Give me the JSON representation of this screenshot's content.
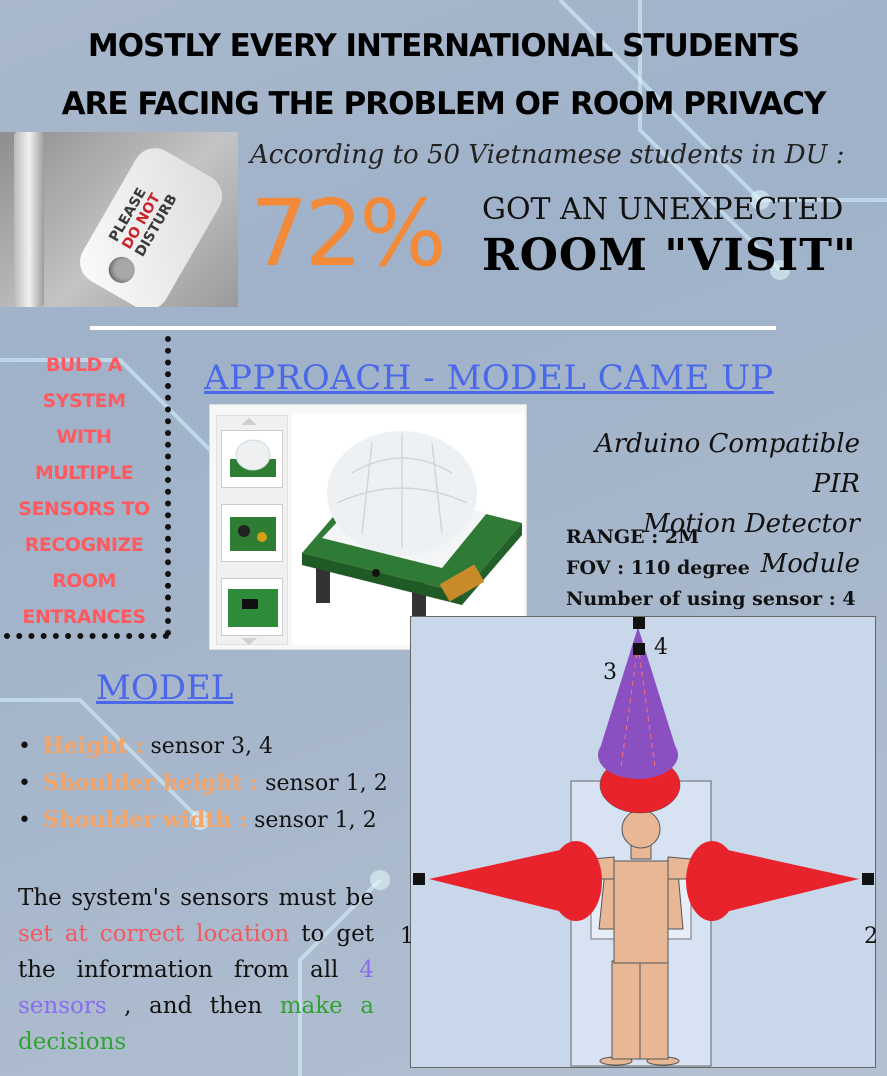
{
  "headline": {
    "line1": "MOSTLY EVERY INTERNATIONAL STUDENTS",
    "line2": "ARE FACING THE PROBLEM OF ROOM PRIVACY"
  },
  "photo": {
    "sign_line1": "PLEASE",
    "sign_line2": "DO NOT",
    "sign_line3": "DISTURB"
  },
  "stat": {
    "according": "According to 50 Vietnamese students in DU :",
    "percent": "72%",
    "line1": "GOT AN UNEXPECTED",
    "line2": "ROOM \"VISIT\""
  },
  "side": {
    "lines": [
      "BULD A",
      "SYSTEM",
      "WITH",
      "MULTIPLE",
      "SENSORS TO",
      "RECOGNIZE",
      "ROOM",
      "ENTRANCES"
    ]
  },
  "approach": {
    "title": "APPROACH - MODEL CAME UP",
    "module_line1": "Arduino Compatible PIR",
    "module_line2": "Motion Detector Module",
    "specs": [
      "RANGE : 2M",
      "FOV : 110 degree",
      "Number of using sensor : 4"
    ]
  },
  "model": {
    "title": "MODEL",
    "items": [
      {
        "key": "Height :",
        "value": " sensor 3, 4"
      },
      {
        "key": "Shoulder height :",
        "value": " sensor 1, 2"
      },
      {
        "key": "Shoulder width :",
        "value": " sensor 1, 2"
      }
    ],
    "para": {
      "p1": "The system's sensors must be ",
      "p2": "set at correct location",
      "p3": " to get the information from all ",
      "p4": "4 sensors",
      "p5": " , and then ",
      "p6": "make a decisions"
    }
  },
  "diagram": {
    "labels": {
      "s1": "1",
      "s2": "2",
      "s3": "3",
      "s4": "4"
    }
  },
  "colors": {
    "accent_blue": "#4a68e8",
    "stat_orange": "#f28a3a",
    "side_red": "#ff5a5f",
    "key_orange": "#f4a56a",
    "cone_red": "#e8232b",
    "cone_purple": "#8a4fc0",
    "skin": "#e7b796"
  }
}
